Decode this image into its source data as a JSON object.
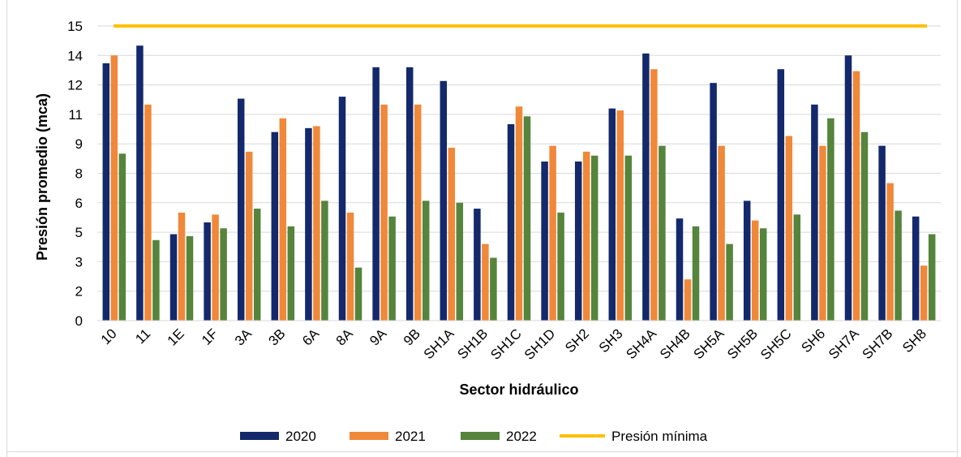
{
  "chart_data": {
    "type": "bar",
    "title": "",
    "xlabel": "Sector hidráulico",
    "ylabel": "Presión promedio (mca)",
    "ylim": [
      0,
      15
    ],
    "y_ticks": [
      "0",
      "2",
      "3",
      "5",
      "6",
      "8",
      "9",
      "11",
      "12",
      "14",
      "15"
    ],
    "categories": [
      "10",
      "11",
      "1E",
      "1F",
      "3A",
      "3B",
      "6A",
      "8A",
      "9A",
      "9B",
      "SH1A",
      "SH1B",
      "SH1C",
      "SH1D",
      "SH2",
      "SH3",
      "SH4A",
      "SH4B",
      "SH5A",
      "SH5B",
      "SH5C",
      "SH6",
      "SH7A",
      "SH7B",
      "SH8"
    ],
    "series": [
      {
        "name": "2020",
        "color": "#13296b",
        "values": [
          13.1,
          14.0,
          4.4,
          5.0,
          11.3,
          9.6,
          9.8,
          11.4,
          12.9,
          12.9,
          12.2,
          5.7,
          10.0,
          8.1,
          8.1,
          10.8,
          13.6,
          5.2,
          12.1,
          6.1,
          12.8,
          11.0,
          13.5,
          8.9,
          5.3
        ]
      },
      {
        "name": "2021",
        "color": "#f0883a",
        "values": [
          13.5,
          11.0,
          5.5,
          5.4,
          8.6,
          10.3,
          9.9,
          5.5,
          11.0,
          11.0,
          8.8,
          3.9,
          10.9,
          8.9,
          8.6,
          10.7,
          12.8,
          2.1,
          8.9,
          5.1,
          9.4,
          8.9,
          12.7,
          7.0,
          2.8
        ]
      },
      {
        "name": "2022",
        "color": "#55843c",
        "values": [
          8.5,
          4.1,
          4.3,
          4.7,
          5.7,
          4.8,
          6.1,
          2.7,
          5.3,
          6.1,
          6.0,
          3.2,
          10.4,
          5.5,
          8.4,
          8.4,
          8.9,
          4.8,
          3.9,
          4.7,
          5.4,
          10.3,
          9.6,
          5.6,
          4.4
        ]
      }
    ],
    "reference_line": {
      "name": "Presión mínima",
      "value": 15,
      "color": "#ffc000"
    },
    "grid": true,
    "legend_position": "bottom"
  }
}
